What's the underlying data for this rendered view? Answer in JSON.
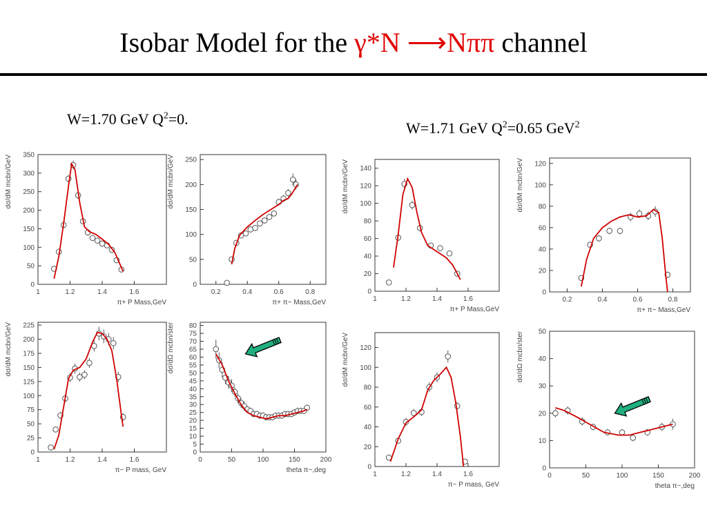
{
  "title": {
    "part1": "Isobar Model for the ",
    "part2": "γ*N ⟶Nππ",
    "part3": " channel"
  },
  "conditions": {
    "left": {
      "text1": "W=1.70 GeV Q",
      "sup": "2",
      "text2": "=0."
    },
    "right": {
      "text1": "W=1.71 GeV Q",
      "sup1": "2",
      "text2": "=0.65 GeV",
      "sup2": "2"
    }
  },
  "colors": {
    "model_curve": "#d00000",
    "data_marker": "#555555",
    "arrow": "#20b080",
    "title_accent": "#e00000"
  },
  "chart_data": [
    {
      "type": "scatter",
      "xlabel": "π+ P Mass,GeV",
      "ylabel": "dσ/dM mcbn/GeV",
      "xlim": [
        1.0,
        1.8
      ],
      "ylim": [
        0,
        350
      ],
      "xticks": [
        1,
        1.2,
        1.4,
        1.6
      ],
      "yticks": [
        0,
        50,
        100,
        150,
        200,
        250,
        300,
        350
      ],
      "points": [
        [
          1.1,
          42
        ],
        [
          1.13,
          88
        ],
        [
          1.16,
          160
        ],
        [
          1.19,
          285
        ],
        [
          1.22,
          322
        ],
        [
          1.25,
          240
        ],
        [
          1.28,
          170
        ],
        [
          1.31,
          140
        ],
        [
          1.34,
          125
        ],
        [
          1.37,
          118
        ],
        [
          1.4,
          110
        ],
        [
          1.43,
          105
        ],
        [
          1.46,
          93
        ],
        [
          1.49,
          65
        ],
        [
          1.52,
          40
        ]
      ],
      "errors": [
        5,
        6,
        8,
        10,
        12,
        10,
        8,
        6,
        5,
        5,
        5,
        5,
        5,
        5,
        4
      ],
      "curve": [
        [
          1.1,
          15
        ],
        [
          1.13,
          75
        ],
        [
          1.16,
          165
        ],
        [
          1.19,
          265
        ],
        [
          1.21,
          325
        ],
        [
          1.23,
          310
        ],
        [
          1.26,
          220
        ],
        [
          1.29,
          155
        ],
        [
          1.32,
          142
        ],
        [
          1.36,
          135
        ],
        [
          1.4,
          122
        ],
        [
          1.44,
          108
        ],
        [
          1.48,
          85
        ],
        [
          1.51,
          55
        ],
        [
          1.53,
          35
        ]
      ]
    },
    {
      "type": "scatter",
      "xlabel": "π+ π− Mass,GeV",
      "ylabel": "dσ/dM mcbn/GeV",
      "xlim": [
        0.1,
        0.9
      ],
      "ylim": [
        0,
        260
      ],
      "xticks": [
        0.2,
        0.4,
        0.6,
        0.8
      ],
      "yticks": [
        0,
        50,
        100,
        150,
        200,
        250
      ],
      "points": [
        [
          0.27,
          3
        ],
        [
          0.3,
          50
        ],
        [
          0.33,
          83
        ],
        [
          0.36,
          98
        ],
        [
          0.39,
          102
        ],
        [
          0.42,
          110
        ],
        [
          0.45,
          113
        ],
        [
          0.48,
          122
        ],
        [
          0.51,
          128
        ],
        [
          0.54,
          135
        ],
        [
          0.57,
          142
        ],
        [
          0.6,
          165
        ],
        [
          0.63,
          172
        ],
        [
          0.66,
          183
        ],
        [
          0.69,
          210
        ],
        [
          0.71,
          200
        ]
      ],
      "errors": [
        3,
        5,
        6,
        6,
        6,
        6,
        6,
        6,
        6,
        6,
        6,
        7,
        7,
        8,
        12,
        10
      ],
      "curve": [
        [
          0.3,
          40
        ],
        [
          0.32,
          72
        ],
        [
          0.35,
          98
        ],
        [
          0.4,
          115
        ],
        [
          0.45,
          128
        ],
        [
          0.5,
          140
        ],
        [
          0.55,
          150
        ],
        [
          0.6,
          160
        ],
        [
          0.63,
          168
        ],
        [
          0.66,
          172
        ],
        [
          0.68,
          180
        ],
        [
          0.7,
          190
        ],
        [
          0.72,
          200
        ]
      ]
    },
    {
      "type": "scatter",
      "xlabel": "π+ P Mass,GeV",
      "ylabel": "dσ/dM mcbn/GeV",
      "xlim": [
        1.0,
        1.8
      ],
      "ylim": [
        0,
        150
      ],
      "xticks": [
        1,
        1.2,
        1.4,
        1.6
      ],
      "yticks": [
        0,
        20,
        40,
        60,
        80,
        100,
        120,
        140
      ],
      "points": [
        [
          1.09,
          10
        ],
        [
          1.15,
          61
        ],
        [
          1.19,
          122
        ],
        [
          1.24,
          98
        ],
        [
          1.29,
          72
        ],
        [
          1.36,
          52
        ],
        [
          1.42,
          49
        ],
        [
          1.48,
          43
        ],
        [
          1.53,
          20
        ]
      ],
      "errors": [
        2,
        4,
        6,
        5,
        4,
        3,
        3,
        3,
        3
      ],
      "curve": [
        [
          1.12,
          27
        ],
        [
          1.15,
          65
        ],
        [
          1.18,
          110
        ],
        [
          1.21,
          128
        ],
        [
          1.24,
          118
        ],
        [
          1.27,
          90
        ],
        [
          1.3,
          67
        ],
        [
          1.34,
          52
        ],
        [
          1.4,
          45
        ],
        [
          1.46,
          38
        ],
        [
          1.5,
          30
        ],
        [
          1.53,
          20
        ],
        [
          1.55,
          13
        ]
      ]
    },
    {
      "type": "scatter",
      "xlabel": "π+ π− Mass,GeV",
      "ylabel": "dσ/dM mcbn/GeV",
      "xlim": [
        0.1,
        0.9
      ],
      "ylim": [
        0,
        125
      ],
      "xticks": [
        0.2,
        0.4,
        0.6,
        0.8
      ],
      "yticks": [
        0,
        20,
        40,
        60,
        80,
        100,
        120
      ],
      "points": [
        [
          0.28,
          13
        ],
        [
          0.33,
          44
        ],
        [
          0.38,
          50
        ],
        [
          0.44,
          57
        ],
        [
          0.5,
          57
        ],
        [
          0.56,
          70
        ],
        [
          0.61,
          73
        ],
        [
          0.66,
          71
        ],
        [
          0.7,
          75
        ],
        [
          0.77,
          16
        ]
      ],
      "errors": [
        2,
        3,
        3,
        3,
        3,
        4,
        4,
        4,
        5,
        3
      ],
      "curve": [
        [
          0.28,
          5
        ],
        [
          0.31,
          30
        ],
        [
          0.35,
          50
        ],
        [
          0.4,
          60
        ],
        [
          0.45,
          66
        ],
        [
          0.5,
          70
        ],
        [
          0.55,
          72
        ],
        [
          0.6,
          70
        ],
        [
          0.65,
          71
        ],
        [
          0.69,
          77
        ],
        [
          0.72,
          74
        ],
        [
          0.74,
          50
        ],
        [
          0.76,
          15
        ],
        [
          0.77,
          0
        ]
      ]
    },
    {
      "type": "scatter",
      "xlabel": "π− P mass, GeV",
      "ylabel": "dσ/dM mcbn/GeV",
      "xlim": [
        1.0,
        1.8
      ],
      "ylim": [
        0,
        230
      ],
      "xticks": [
        1,
        1.2,
        1.4,
        1.6
      ],
      "yticks": [
        0,
        25,
        50,
        75,
        100,
        125,
        150,
        175,
        200,
        225
      ],
      "points": [
        [
          1.08,
          8
        ],
        [
          1.11,
          40
        ],
        [
          1.14,
          65
        ],
        [
          1.17,
          95
        ],
        [
          1.2,
          132
        ],
        [
          1.23,
          148
        ],
        [
          1.26,
          133
        ],
        [
          1.29,
          137
        ],
        [
          1.32,
          158
        ],
        [
          1.35,
          188
        ],
        [
          1.38,
          210
        ],
        [
          1.41,
          205
        ],
        [
          1.44,
          200
        ],
        [
          1.47,
          193
        ],
        [
          1.5,
          133
        ],
        [
          1.53,
          62
        ]
      ],
      "errors": [
        3,
        5,
        6,
        7,
        8,
        9,
        8,
        8,
        9,
        10,
        12,
        12,
        11,
        11,
        9,
        7
      ],
      "curve": [
        [
          1.1,
          5
        ],
        [
          1.13,
          30
        ],
        [
          1.16,
          80
        ],
        [
          1.19,
          130
        ],
        [
          1.22,
          145
        ],
        [
          1.26,
          150
        ],
        [
          1.3,
          165
        ],
        [
          1.34,
          195
        ],
        [
          1.37,
          212
        ],
        [
          1.4,
          210
        ],
        [
          1.43,
          200
        ],
        [
          1.46,
          180
        ],
        [
          1.49,
          130
        ],
        [
          1.52,
          65
        ],
        [
          1.53,
          45
        ]
      ]
    },
    {
      "type": "scatter",
      "xlabel": "theta π−,deg",
      "ylabel": "dσ/dΩ mcbn/ster",
      "xlim": [
        0,
        200
      ],
      "ylim": [
        0,
        82
      ],
      "xticks": [
        0,
        50,
        100,
        150,
        200
      ],
      "yticks": [
        0,
        5,
        10,
        15,
        20,
        25,
        30,
        35,
        40,
        45,
        50,
        55,
        60,
        65,
        70,
        75,
        80
      ],
      "points": [
        [
          25,
          65
        ],
        [
          30,
          58
        ],
        [
          35,
          52
        ],
        [
          40,
          47
        ],
        [
          45,
          44
        ],
        [
          50,
          42
        ],
        [
          55,
          38
        ],
        [
          60,
          34
        ],
        [
          65,
          31
        ],
        [
          70,
          29
        ],
        [
          75,
          27
        ],
        [
          80,
          26
        ],
        [
          85,
          24
        ],
        [
          90,
          24
        ],
        [
          95,
          23
        ],
        [
          100,
          23
        ],
        [
          105,
          22
        ],
        [
          110,
          22
        ],
        [
          115,
          22
        ],
        [
          120,
          23
        ],
        [
          125,
          23
        ],
        [
          130,
          23
        ],
        [
          135,
          24
        ],
        [
          140,
          24
        ],
        [
          145,
          24
        ],
        [
          150,
          25
        ],
        [
          155,
          26
        ],
        [
          160,
          26
        ],
        [
          165,
          26
        ],
        [
          170,
          28
        ]
      ],
      "errors": [
        6,
        5,
        5,
        4,
        4,
        4,
        3,
        3,
        3,
        3,
        2,
        2,
        2,
        2,
        2,
        2,
        2,
        2,
        2,
        2,
        2,
        2,
        2,
        2,
        2,
        2,
        2,
        2,
        2,
        2
      ],
      "curve": [
        [
          25,
          62
        ],
        [
          35,
          55
        ],
        [
          45,
          45
        ],
        [
          55,
          37
        ],
        [
          65,
          30
        ],
        [
          75,
          25
        ],
        [
          85,
          23
        ],
        [
          95,
          22
        ],
        [
          105,
          21
        ],
        [
          115,
          22
        ],
        [
          125,
          23
        ],
        [
          135,
          23
        ],
        [
          145,
          24
        ],
        [
          155,
          25
        ],
        [
          165,
          26
        ],
        [
          170,
          27
        ]
      ],
      "arrow": {
        "x": 72,
        "y": 62
      }
    },
    {
      "type": "scatter",
      "xlabel": "π− P mass, GeV",
      "ylabel": "dσ/dM mcbn/GeV",
      "xlim": [
        1.0,
        1.8
      ],
      "ylim": [
        0,
        135
      ],
      "xticks": [
        1,
        1.2,
        1.4,
        1.6
      ],
      "yticks": [
        0,
        20,
        40,
        60,
        80,
        100,
        120
      ],
      "points": [
        [
          1.09,
          9
        ],
        [
          1.15,
          26
        ],
        [
          1.2,
          45
        ],
        [
          1.25,
          54
        ],
        [
          1.3,
          55
        ],
        [
          1.35,
          80
        ],
        [
          1.4,
          90
        ],
        [
          1.47,
          111
        ],
        [
          1.53,
          61
        ],
        [
          1.58,
          5
        ]
      ],
      "errors": [
        2,
        3,
        4,
        4,
        4,
        5,
        5,
        6,
        4,
        2
      ],
      "curve": [
        [
          1.1,
          5
        ],
        [
          1.15,
          28
        ],
        [
          1.2,
          44
        ],
        [
          1.25,
          50
        ],
        [
          1.3,
          57
        ],
        [
          1.34,
          77
        ],
        [
          1.38,
          87
        ],
        [
          1.42,
          93
        ],
        [
          1.46,
          100
        ],
        [
          1.49,
          90
        ],
        [
          1.52,
          65
        ],
        [
          1.55,
          30
        ],
        [
          1.57,
          0
        ]
      ]
    },
    {
      "type": "scatter",
      "xlabel": "theta π−,deg",
      "ylabel": "dσ/dΩ mcbn/ster",
      "xlim": [
        0,
        200
      ],
      "ylim": [
        0,
        50
      ],
      "xticks": [
        0,
        50,
        100,
        150,
        200
      ],
      "yticks": [
        0,
        10,
        20,
        30,
        40,
        50
      ],
      "points": [
        [
          8,
          20
        ],
        [
          25,
          21
        ],
        [
          45,
          17
        ],
        [
          60,
          15
        ],
        [
          80,
          13
        ],
        [
          100,
          13
        ],
        [
          115,
          11
        ],
        [
          135,
          13
        ],
        [
          155,
          15
        ],
        [
          170,
          16
        ]
      ],
      "errors": [
        1.5,
        1.5,
        1.5,
        1.2,
        1.2,
        1.2,
        1.2,
        1.2,
        1.5,
        2
      ],
      "curve": [
        [
          8,
          22
        ],
        [
          20,
          21
        ],
        [
          35,
          19
        ],
        [
          55,
          16
        ],
        [
          75,
          13
        ],
        [
          95,
          12
        ],
        [
          110,
          12
        ],
        [
          125,
          13
        ],
        [
          140,
          14
        ],
        [
          155,
          15
        ],
        [
          170,
          16
        ]
      ],
      "arrow": {
        "x": 90,
        "y": 20
      }
    }
  ]
}
